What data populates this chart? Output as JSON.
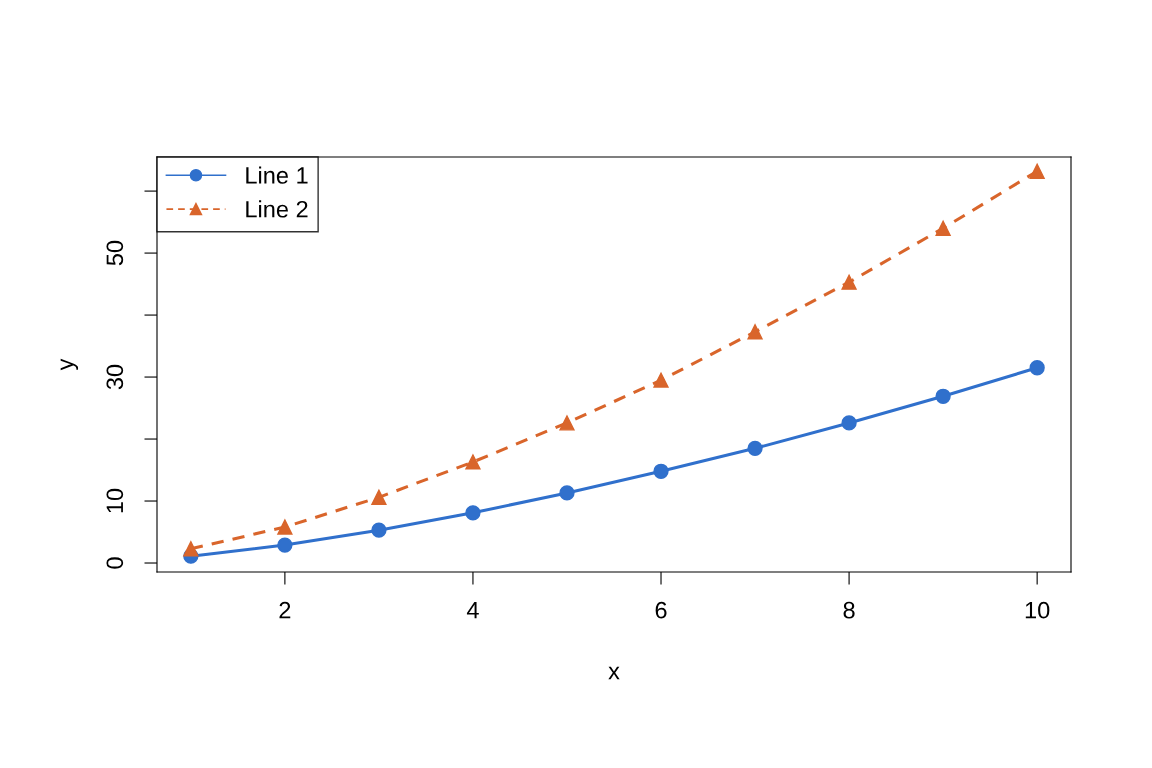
{
  "chart_data": {
    "type": "line",
    "xlabel": "x",
    "ylabel": "y",
    "x": [
      1,
      2,
      3,
      4,
      5,
      6,
      7,
      8,
      9,
      10
    ],
    "series": [
      {
        "name": "Line 1",
        "color": "#3070cc",
        "marker": "circle",
        "line_style": "solid",
        "values": [
          1.1,
          2.9,
          5.3,
          8.1,
          11.3,
          14.8,
          18.5,
          22.6,
          26.9,
          31.5
        ]
      },
      {
        "name": "Line 2",
        "color": "#d9652b",
        "marker": "triangle",
        "line_style": "dashed",
        "values": [
          2.3,
          5.8,
          10.6,
          16.3,
          22.6,
          29.5,
          37.3,
          45.3,
          54.0,
          63.2
        ]
      }
    ],
    "xlim": [
      0.64,
      10.36
    ],
    "ylim": [
      -1.45,
      65.5
    ],
    "xticks": [
      2,
      4,
      6,
      8,
      10
    ],
    "yticks": [
      0,
      10,
      {
        "value": 20,
        "label": null
      },
      30,
      {
        "value": 40,
        "label": null
      },
      50,
      {
        "value": 60,
        "label": null
      }
    ],
    "grid": false,
    "legend": "top left"
  }
}
